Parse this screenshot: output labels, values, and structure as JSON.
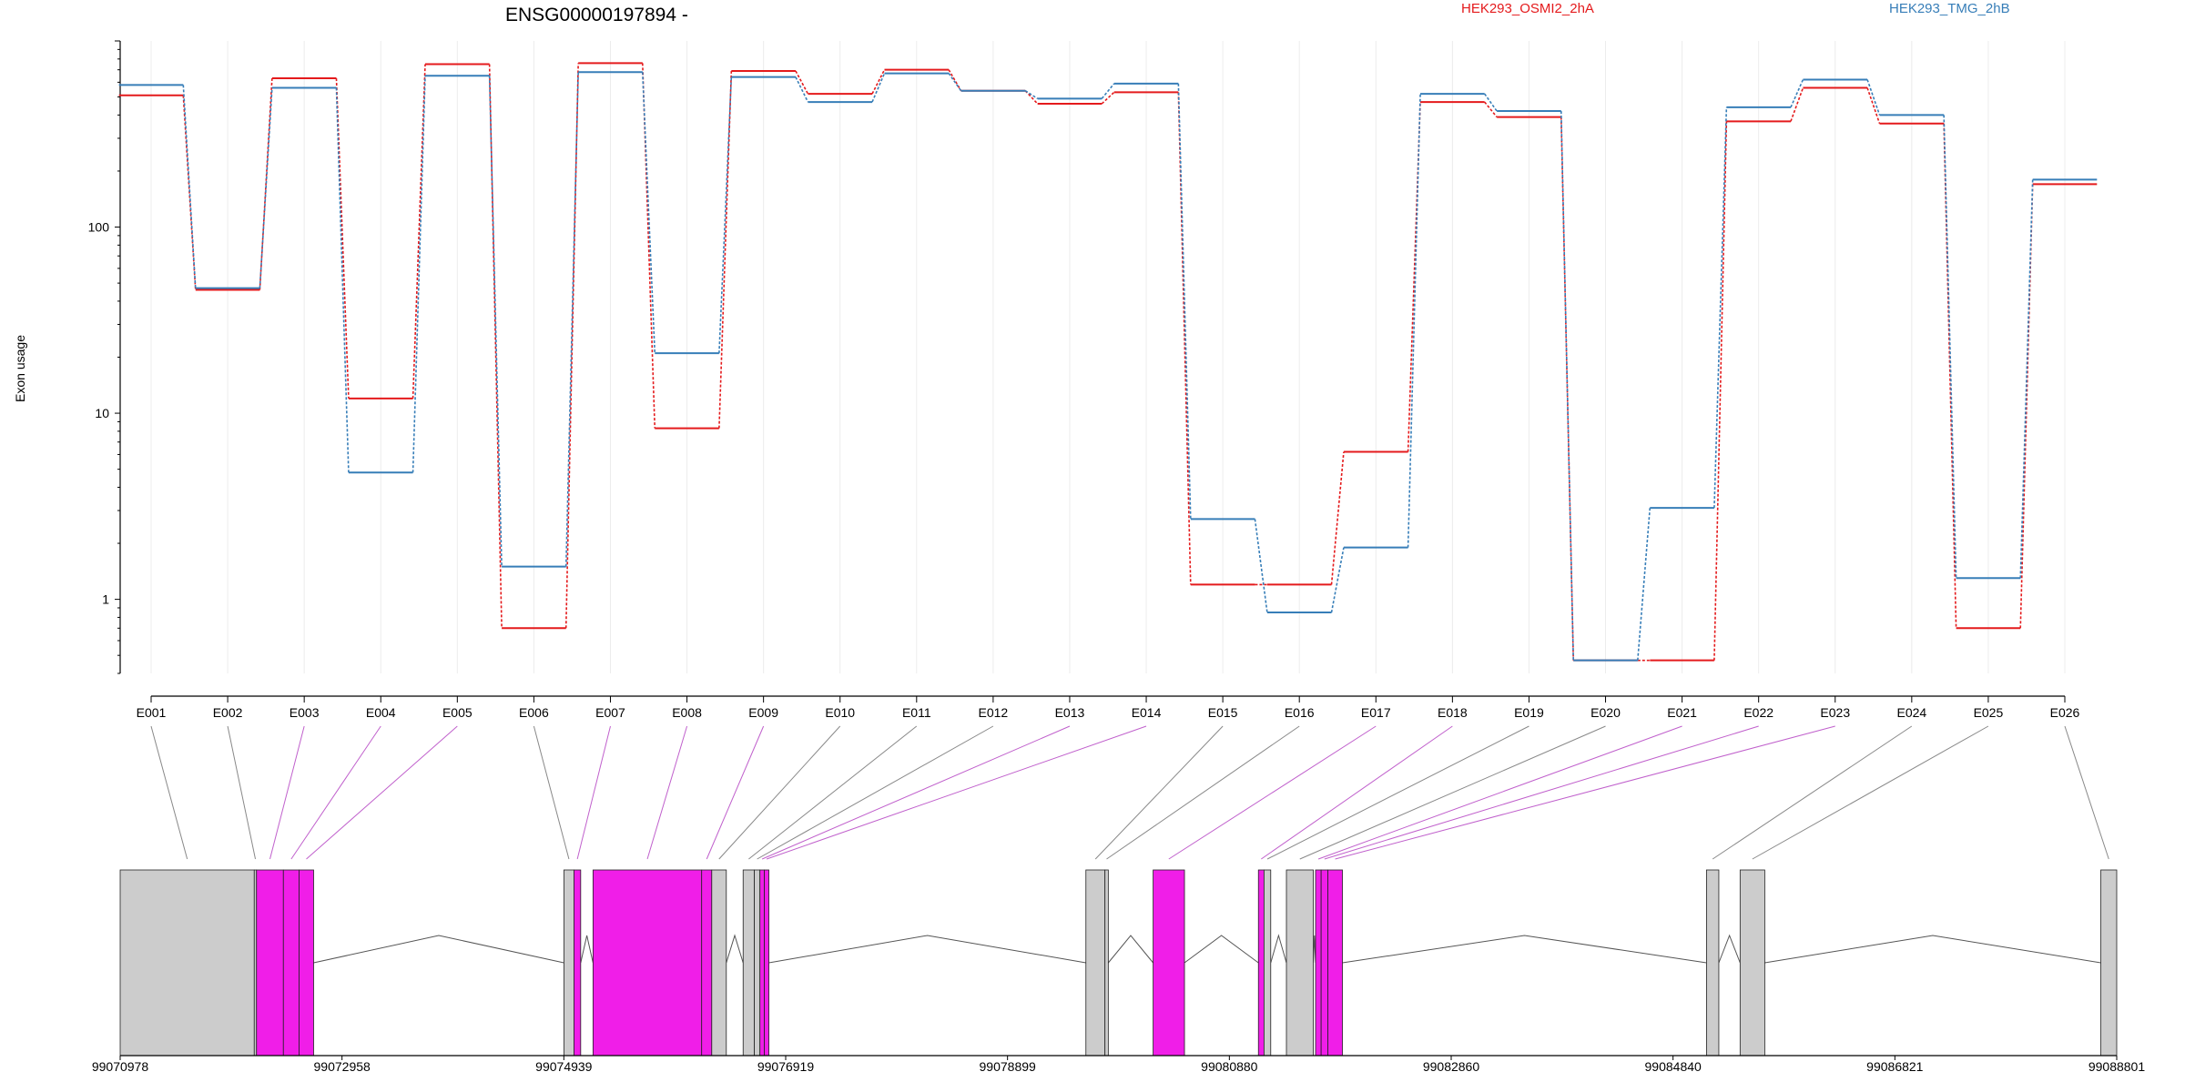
{
  "chart_data": {
    "type": "line",
    "title": "ENSG00000197894 -",
    "ylabel": "Exon usage",
    "y_scale": "log",
    "ylim": [
      0.4,
      1000
    ],
    "y_ticks": [
      1,
      10,
      100
    ],
    "y_tick_labels": [
      "1",
      "10",
      "100"
    ],
    "grid": "vertical",
    "legend_placement": "top-right",
    "categories": [
      "E001",
      "E002",
      "E003",
      "E004",
      "E005",
      "E006",
      "E007",
      "E008",
      "E009",
      "E010",
      "E011",
      "E012",
      "E013",
      "E014",
      "E015",
      "E016",
      "E017",
      "E018",
      "E019",
      "E020",
      "E021",
      "E022",
      "E023",
      "E024",
      "E025",
      "E026"
    ],
    "series": [
      {
        "name": "HEK293_OSMI2_2hA",
        "color": "#e41a1c",
        "values": [
          510,
          46,
          630,
          12,
          750,
          0.7,
          760,
          8.3,
          690,
          520,
          700,
          540,
          460,
          530,
          1.2,
          1.2,
          6.2,
          470,
          390,
          0.47,
          0.47,
          370,
          560,
          360,
          0.7,
          170
        ]
      },
      {
        "name": "HEK293_TMG_2hB",
        "color": "#377eb8",
        "values": [
          580,
          47,
          560,
          4.8,
          650,
          1.5,
          680,
          21,
          640,
          470,
          670,
          540,
          490,
          590,
          2.7,
          0.85,
          1.9,
          520,
          420,
          0.47,
          3.1,
          440,
          620,
          400,
          1.3,
          180
        ]
      }
    ],
    "gene_model": {
      "genomic_ticks": [
        "99070978",
        "99072958",
        "99074939",
        "99076919",
        "99078899",
        "99080880",
        "99082860",
        "99084840",
        "99086821",
        "99088801"
      ],
      "genomic_range": [
        99070978,
        99088801
      ],
      "colors": {
        "exon": "#cccccc",
        "highlighted_exon": "#f01ee8",
        "connector": "#888888",
        "highlighted_connector": "#c060cc"
      },
      "exons": [
        {
          "id": "E001",
          "start": 99070978,
          "end": 99072175,
          "highlighted": false
        },
        {
          "id": "E002",
          "start": 99072175,
          "end": 99072195,
          "highlighted": false
        },
        {
          "id": "E003",
          "start": 99072195,
          "end": 99072435,
          "highlighted": true
        },
        {
          "id": "E004",
          "start": 99072435,
          "end": 99072575,
          "highlighted": true
        },
        {
          "id": "E005",
          "start": 99072575,
          "end": 99072705,
          "highlighted": true
        },
        {
          "id": "E006",
          "start": 99074939,
          "end": 99075029,
          "highlighted": false
        },
        {
          "id": "E007",
          "start": 99075029,
          "end": 99075089,
          "highlighted": true
        },
        {
          "id": "E008",
          "start": 99075199,
          "end": 99076169,
          "highlighted": true
        },
        {
          "id": "E009",
          "start": 99076169,
          "end": 99076259,
          "highlighted": true
        },
        {
          "id": "E010",
          "start": 99076259,
          "end": 99076389,
          "highlighted": false
        },
        {
          "id": "E011",
          "start": 99076539,
          "end": 99076639,
          "highlighted": false
        },
        {
          "id": "E012",
          "start": 99076639,
          "end": 99076689,
          "highlighted": false
        },
        {
          "id": "E013",
          "start": 99076689,
          "end": 99076729,
          "highlighted": true
        },
        {
          "id": "E014",
          "start": 99076729,
          "end": 99076769,
          "highlighted": true
        },
        {
          "id": "E015",
          "start": 99079599,
          "end": 99079769,
          "highlighted": false
        },
        {
          "id": "E016",
          "start": 99079769,
          "end": 99079799,
          "highlighted": false
        },
        {
          "id": "E017",
          "start": 99080199,
          "end": 99080479,
          "highlighted": true
        },
        {
          "id": "E018",
          "start": 99081139,
          "end": 99081189,
          "highlighted": true
        },
        {
          "id": "E019",
          "start": 99081189,
          "end": 99081249,
          "highlighted": false
        },
        {
          "id": "E020",
          "start": 99081389,
          "end": 99081629,
          "highlighted": false
        },
        {
          "id": "E021",
          "start": 99081649,
          "end": 99081699,
          "highlighted": true
        },
        {
          "id": "E022",
          "start": 99081699,
          "end": 99081759,
          "highlighted": true
        },
        {
          "id": "E023",
          "start": 99081759,
          "end": 99081889,
          "highlighted": true
        },
        {
          "id": "E024",
          "start": 99085139,
          "end": 99085249,
          "highlighted": false
        },
        {
          "id": "E025",
          "start": 99085439,
          "end": 99085659,
          "highlighted": false
        },
        {
          "id": "E026",
          "start": 99088659,
          "end": 99088801,
          "highlighted": false
        }
      ]
    }
  }
}
